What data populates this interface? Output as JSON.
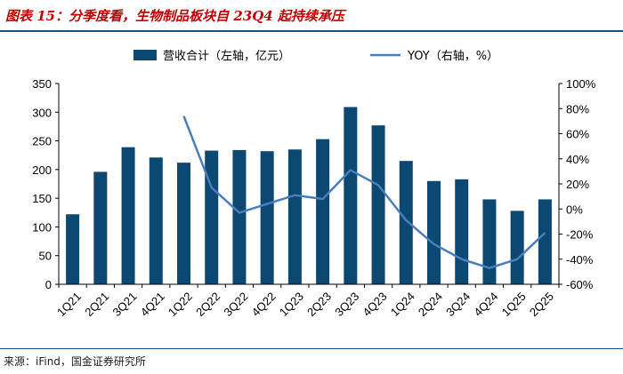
{
  "header": {
    "title": "图表 15：分季度看，生物制品板块自 23Q4 起持续承压"
  },
  "footer": {
    "source": "来源：iFind，国金证券研究所"
  },
  "colors": {
    "bar": "#0b4872",
    "line": "#4a7ebb",
    "title": "#c00000",
    "rule": "#1f4e79"
  },
  "chart_data": {
    "type": "bar",
    "title": "分季度看，生物制品板块自 23Q4 起持续承压",
    "categories": [
      "1Q21",
      "2Q21",
      "3Q21",
      "4Q21",
      "1Q22",
      "2Q22",
      "3Q22",
      "4Q22",
      "1Q23",
      "2Q23",
      "3Q23",
      "4Q23",
      "1Q24",
      "2Q24",
      "3Q24",
      "4Q24",
      "1Q25",
      "2Q25"
    ],
    "series": [
      {
        "name": "营收合计（左轴，亿元）",
        "type": "bar",
        "axis": "left",
        "values": [
          122,
          196,
          239,
          221,
          212,
          233,
          234,
          232,
          235,
          253,
          309,
          277,
          215,
          180,
          183,
          148,
          128,
          148
        ]
      },
      {
        "name": "YOY（右轴，%）",
        "type": "line",
        "axis": "right",
        "values": [
          null,
          null,
          null,
          null,
          74,
          17,
          -3,
          4,
          11,
          8,
          31,
          19,
          -9,
          -28,
          -40,
          -47,
          -40,
          -19
        ]
      }
    ],
    "y_left": {
      "min": 0,
      "max": 350,
      "step": 50,
      "ticks": [
        "0",
        "50",
        "100",
        "150",
        "200",
        "250",
        "300",
        "350"
      ]
    },
    "y_right": {
      "min": -60,
      "max": 100,
      "step": 20,
      "ticks": [
        "-60%",
        "-40%",
        "-20%",
        "0%",
        "20%",
        "40%",
        "60%",
        "80%",
        "100%"
      ]
    },
    "legend": [
      "营收合计（左轴，亿元）",
      "YOY（右轴，%）"
    ],
    "grid": false
  }
}
